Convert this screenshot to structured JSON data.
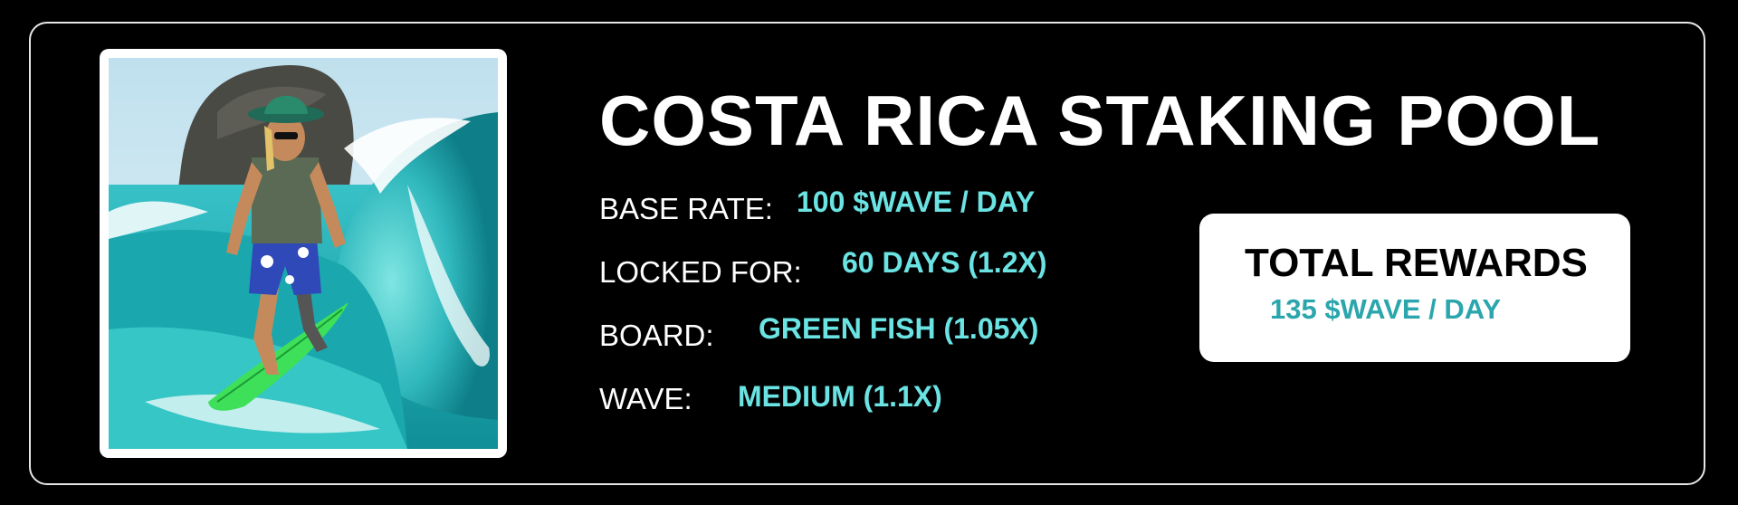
{
  "pool": {
    "title": "COSTA RICA STAKING POOL",
    "stats": [
      {
        "label": "BASE RATE:",
        "value": "100 $WAVE / DAY"
      },
      {
        "label": "LOCKED FOR:",
        "value": "60 DAYS (1.2X)"
      },
      {
        "label": "BOARD:",
        "value": "GREEN FISH (1.05X)"
      },
      {
        "label": "WAVE:",
        "value": "MEDIUM (1.1X)"
      }
    ],
    "rewards": {
      "title": "TOTAL REWARDS",
      "value": "135 $WAVE / DAY"
    }
  },
  "colors": {
    "background": "#000000",
    "accent": "#6be3e3",
    "rewards_value": "#2ba6ad"
  },
  "icons": {
    "artwork": "surfer-artwork"
  }
}
